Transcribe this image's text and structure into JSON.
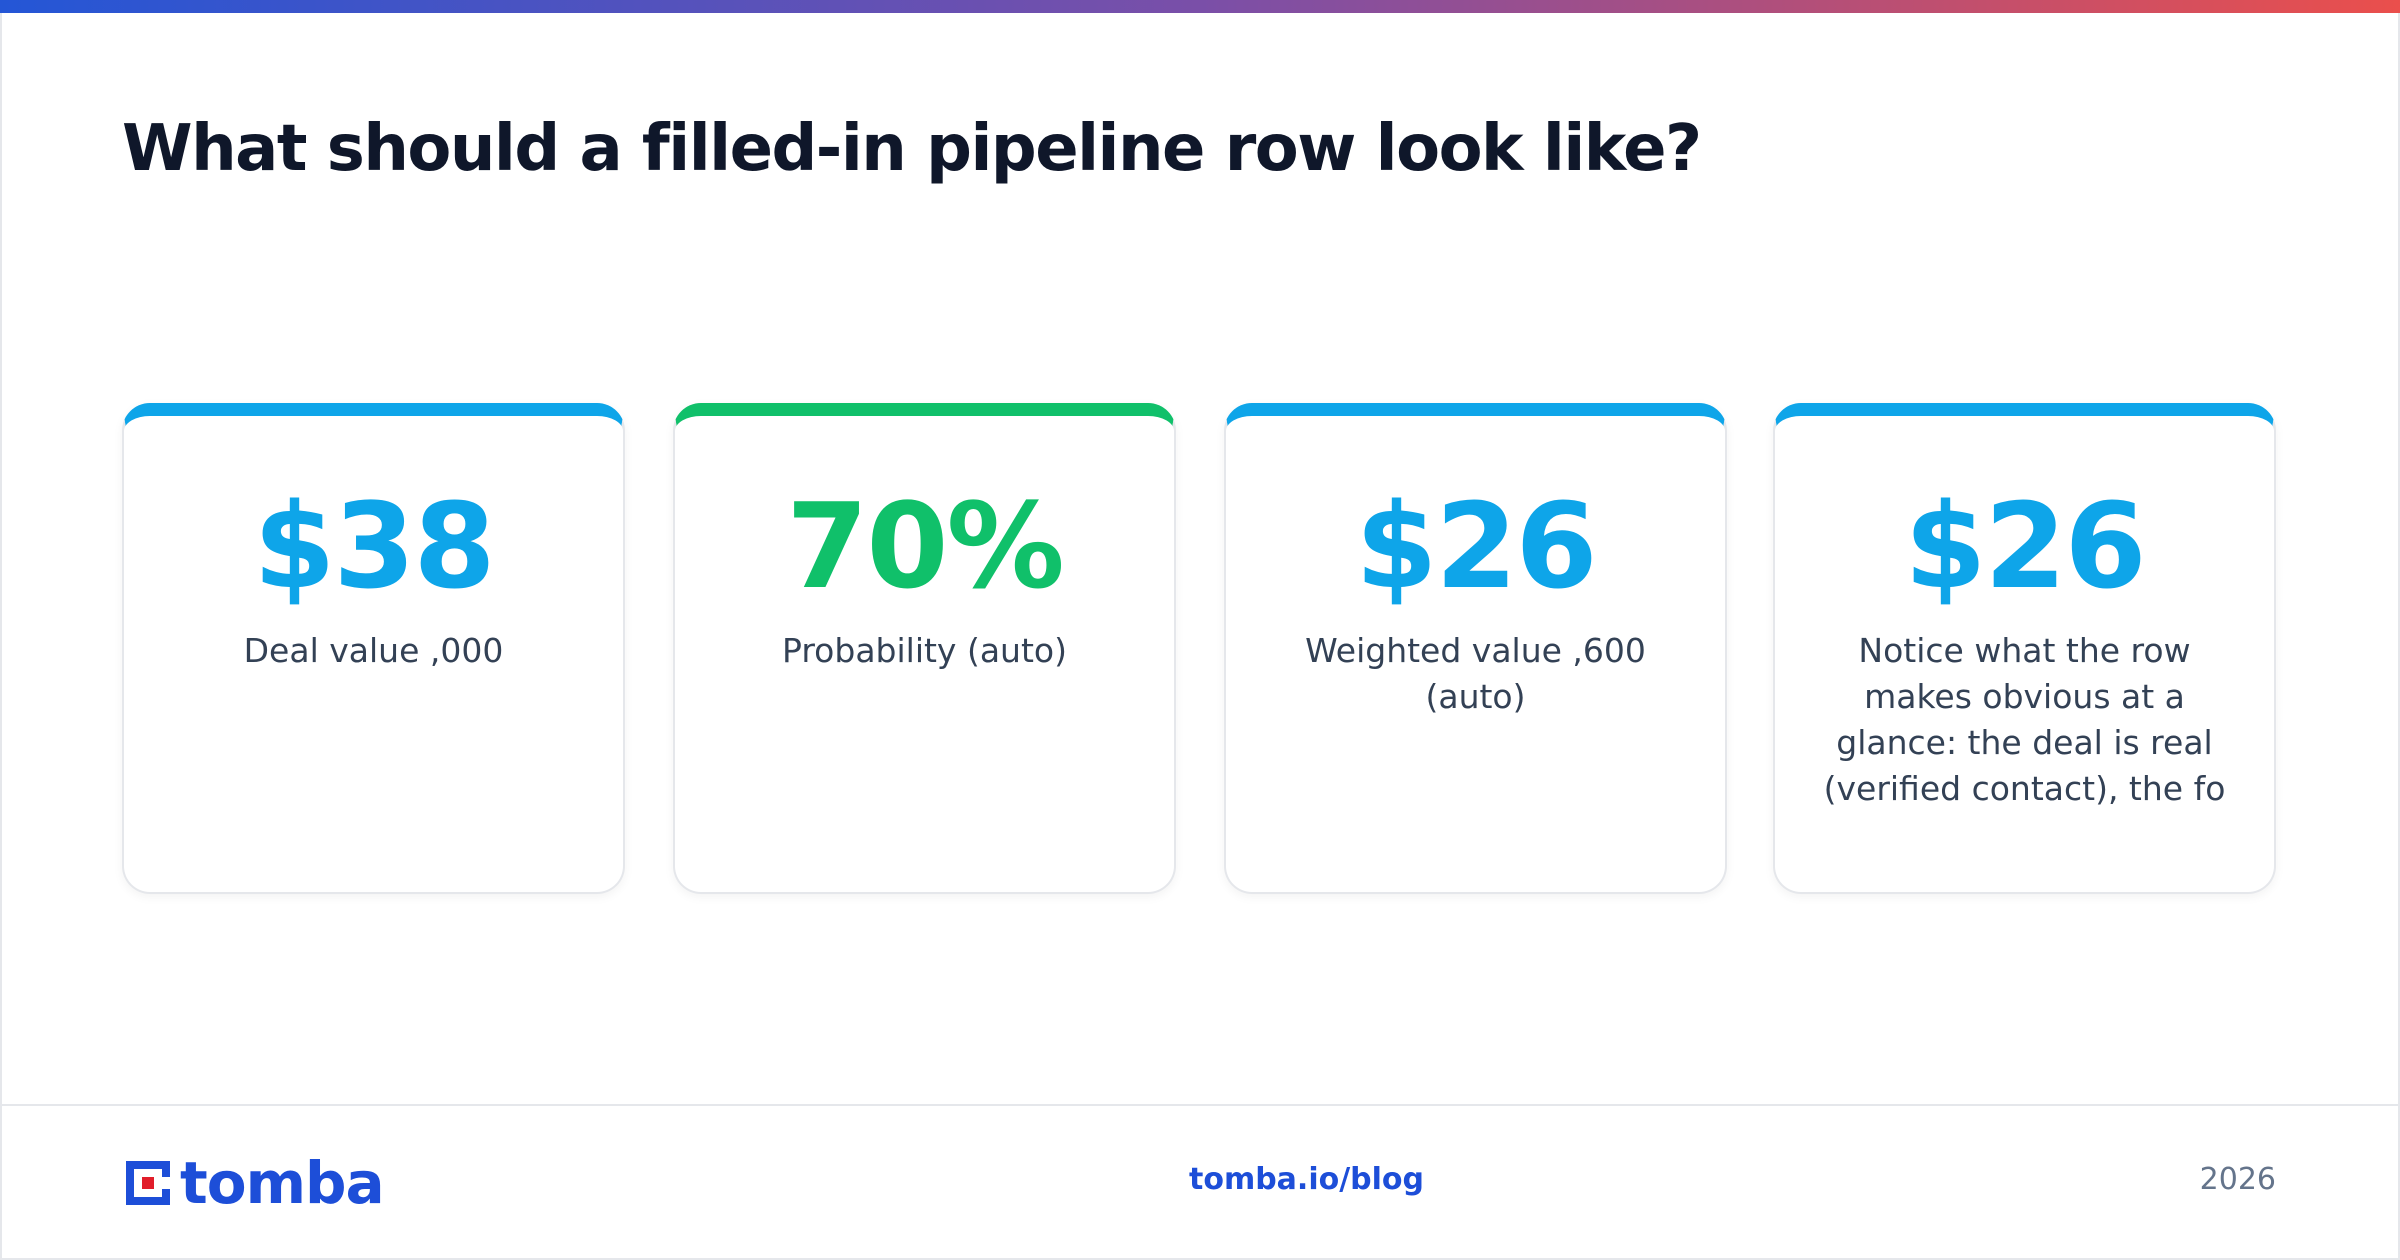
{
  "header": {
    "title": "What should a filled-in pipeline row look like?"
  },
  "cards": [
    {
      "value": "$38",
      "label": "Deal value ,000"
    },
    {
      "value": "70%",
      "label": "Probability (auto)"
    },
    {
      "value": "$26",
      "label": "Weighted value ,600 (auto)"
    },
    {
      "value": "$26",
      "label": "Notice what the row makes obvious at a glance: the deal is real (verified contact), the fo"
    }
  ],
  "footer": {
    "logo": "tomba",
    "url": "tomba.io/blog",
    "year": "2026"
  }
}
